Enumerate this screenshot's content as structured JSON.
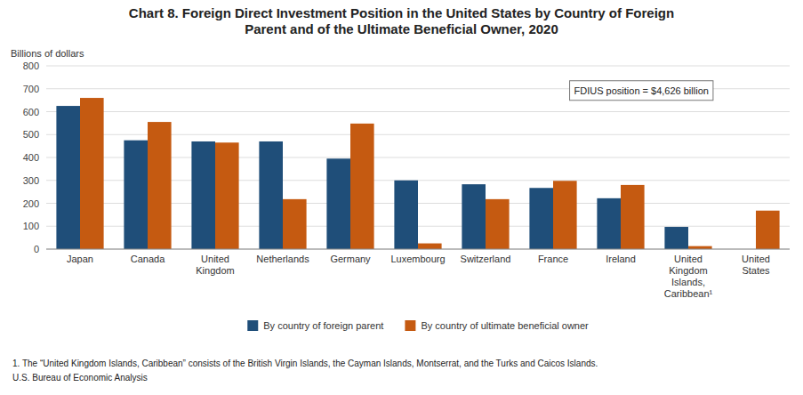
{
  "chart_data": {
    "type": "bar",
    "title": "Chart 8. Foreign Direct Investment Position in the United States by Country of Foreign\nParent and of the Ultimate Beneficial Owner, 2020",
    "y_label": "Billions of dollars",
    "annotations": [
      "FDIUS position = $4,626 billion"
    ],
    "categories": [
      "Japan",
      "Canada",
      "United\nKingdom",
      "Netherlands",
      "Germany",
      "Luxembourg",
      "Switzerland",
      "France",
      "Ireland",
      "United\nKingdom\nIslands,\nCaribbean¹",
      "United\nStates"
    ],
    "series": [
      {
        "name": "By country of foreign parent",
        "color": "#1f4e79",
        "values": [
          625,
          475,
          470,
          470,
          395,
          300,
          283,
          267,
          222,
          97,
          0
        ]
      },
      {
        "name": "By country of ultimate beneficial owner",
        "color": "#c55a11",
        "values": [
          660,
          555,
          465,
          218,
          548,
          25,
          218,
          298,
          280,
          13,
          168
        ]
      }
    ],
    "ylim": [
      0,
      800
    ],
    "yticks": [
      0,
      100,
      200,
      300,
      400,
      500,
      600,
      700,
      800
    ],
    "grid": true,
    "legend": "bottom",
    "footnotes": [
      "1. The “United Kingdom Islands, Caribbean” consists of the British Virgin Islands, the Cayman Islands, Montserrat, and the Turks and Caicos Islands.",
      "U.S. Bureau of Economic Analysis"
    ]
  }
}
